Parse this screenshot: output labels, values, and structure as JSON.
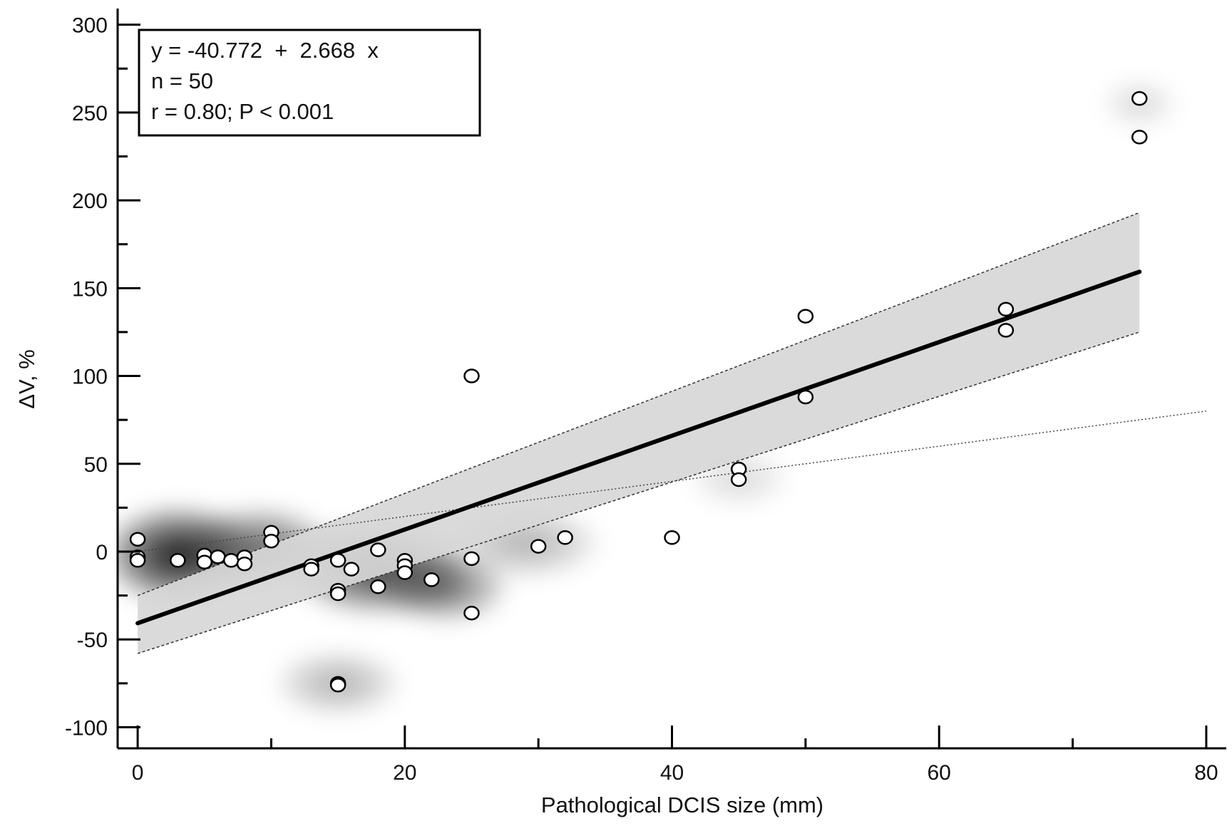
{
  "chart_data": {
    "type": "scatter",
    "xlabel": "Pathological DCIS size (mm)",
    "ylabel": "ΔV, %",
    "xlim": [
      -1.5,
      81.5
    ],
    "ylim": [
      -112,
      310
    ],
    "x_ticks": [
      0,
      20,
      40,
      60,
      80
    ],
    "y_ticks": [
      -100,
      -50,
      0,
      50,
      100,
      150,
      200,
      250,
      300
    ],
    "grid": false,
    "annotation": {
      "placement": "top-left",
      "lines": [
        "y = -40.772  +  2.668  x",
        "n = 50",
        "r = 0.80; P < 0.001"
      ]
    },
    "regression": {
      "intercept": -40.772,
      "slope": 2.668,
      "x_range": [
        0,
        75
      ]
    },
    "confidence_band": {
      "x": [
        0,
        75
      ],
      "lower": [
        -58,
        125
      ],
      "upper": [
        -25,
        193
      ]
    },
    "identity_line": {
      "x": [
        0,
        80
      ],
      "y": [
        0,
        80
      ]
    },
    "points": [
      {
        "x": 0,
        "y": 7
      },
      {
        "x": 0,
        "y": -3
      },
      {
        "x": 0,
        "y": -5
      },
      {
        "x": 3,
        "y": -5
      },
      {
        "x": 5,
        "y": -2
      },
      {
        "x": 5,
        "y": -6
      },
      {
        "x": 6,
        "y": -3
      },
      {
        "x": 7,
        "y": -5
      },
      {
        "x": 8,
        "y": -3
      },
      {
        "x": 8,
        "y": -7
      },
      {
        "x": 10,
        "y": 11
      },
      {
        "x": 10,
        "y": 6
      },
      {
        "x": 13,
        "y": -8
      },
      {
        "x": 13,
        "y": -10
      },
      {
        "x": 15,
        "y": -5
      },
      {
        "x": 15,
        "y": -22
      },
      {
        "x": 15,
        "y": -24
      },
      {
        "x": 15,
        "y": -75
      },
      {
        "x": 15,
        "y": -76
      },
      {
        "x": 16,
        "y": -10
      },
      {
        "x": 18,
        "y": 1
      },
      {
        "x": 18,
        "y": -20
      },
      {
        "x": 20,
        "y": -5
      },
      {
        "x": 20,
        "y": -8
      },
      {
        "x": 20,
        "y": -12
      },
      {
        "x": 22,
        "y": -16
      },
      {
        "x": 25,
        "y": 100
      },
      {
        "x": 25,
        "y": -4
      },
      {
        "x": 25,
        "y": -35
      },
      {
        "x": 30,
        "y": 3
      },
      {
        "x": 32,
        "y": 8
      },
      {
        "x": 40,
        "y": 8
      },
      {
        "x": 45,
        "y": 47
      },
      {
        "x": 45,
        "y": 41
      },
      {
        "x": 50,
        "y": 134
      },
      {
        "x": 50,
        "y": 88
      },
      {
        "x": 65,
        "y": 138
      },
      {
        "x": 65,
        "y": 126
      },
      {
        "x": 75,
        "y": 258
      },
      {
        "x": 75,
        "y": 236
      }
    ],
    "density_blobs": [
      {
        "x": 3,
        "y": -2,
        "rx": 6,
        "ry": 30,
        "opacity": 0.9
      },
      {
        "x": 9,
        "y": 2,
        "rx": 6,
        "ry": 25,
        "opacity": 0.6
      },
      {
        "x": 18,
        "y": -10,
        "rx": 7,
        "ry": 28,
        "opacity": 0.75
      },
      {
        "x": 23,
        "y": -20,
        "rx": 5,
        "ry": 22,
        "opacity": 0.55
      },
      {
        "x": 29,
        "y": 5,
        "rx": 6,
        "ry": 22,
        "opacity": 0.3
      },
      {
        "x": 15,
        "y": -75,
        "rx": 5,
        "ry": 20,
        "opacity": 0.3
      },
      {
        "x": 45,
        "y": 42,
        "rx": 4,
        "ry": 18,
        "opacity": 0.15
      },
      {
        "x": 75,
        "y": 255,
        "rx": 3,
        "ry": 15,
        "opacity": 0.15
      }
    ],
    "colors": {
      "band": "#d7d7d7",
      "line": "#000000",
      "marker_fill": "#ffffff",
      "marker_stroke": "#000000"
    }
  }
}
